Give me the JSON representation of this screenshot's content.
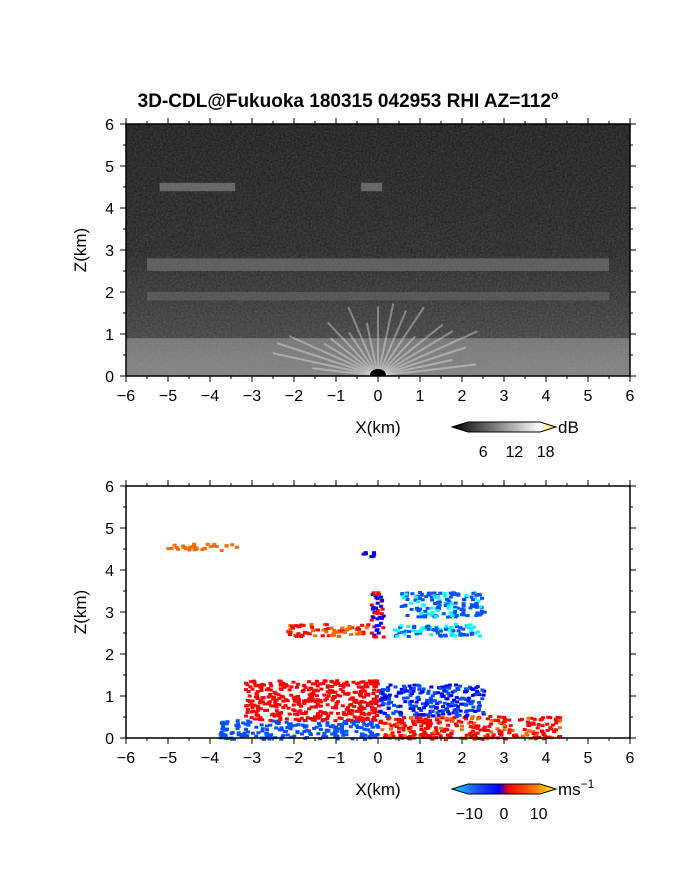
{
  "title": {
    "main": "3D-CDL@Fukuoka 180315 042953 RHI AZ=112",
    "degree_mark": "o"
  },
  "chart_data": [
    {
      "type": "heatmap",
      "panel": "top",
      "quantity": "reflectivity",
      "xlabel": "X(km)",
      "ylabel": "Z(km)",
      "xlim": [
        -6,
        6
      ],
      "ylim": [
        0,
        6
      ],
      "x_ticks": [
        "-6",
        "-5",
        "-4",
        "-3",
        "-2",
        "-1",
        "0",
        "1",
        "2",
        "3",
        "4",
        "5",
        "6"
      ],
      "y_ticks": [
        "0",
        "1",
        "2",
        "3",
        "4",
        "5",
        "6"
      ],
      "colorbar": {
        "unit": "dB",
        "range": [
          0,
          20
        ],
        "tick_labels": [
          "6",
          "12",
          "18"
        ],
        "tick_values": [
          6,
          12,
          18
        ],
        "colors": [
          "#000000",
          "#ffffff",
          "#ffd700"
        ]
      },
      "features": [
        {
          "z_range": [
            0,
            0.9
          ],
          "x_range": [
            -6,
            6
          ],
          "level_db": 12
        },
        {
          "z_range": [
            2.5,
            2.8
          ],
          "x_range": [
            -5.5,
            5.5
          ],
          "level_db": 9
        },
        {
          "z_range": [
            1.8,
            2.0
          ],
          "x_range": [
            -5.5,
            5.5
          ],
          "level_db": 7
        },
        {
          "z_range": [
            4.4,
            4.6
          ],
          "x_range": [
            -5.2,
            -3.4
          ],
          "level_db": 11
        },
        {
          "z_range": [
            4.4,
            4.6
          ],
          "x_range": [
            -0.4,
            0.1
          ],
          "level_db": 11
        }
      ]
    },
    {
      "type": "scatter",
      "panel": "bottom",
      "quantity": "Doppler velocity",
      "xlabel": "X(km)",
      "ylabel": "Z(km)",
      "xlim": [
        -6,
        6
      ],
      "ylim": [
        0,
        6
      ],
      "x_ticks": [
        "-6",
        "-5",
        "-4",
        "-3",
        "-2",
        "-1",
        "0",
        "1",
        "2",
        "3",
        "4",
        "5",
        "6"
      ],
      "y_ticks": [
        "0",
        "1",
        "2",
        "3",
        "4",
        "5",
        "6"
      ],
      "colorbar": {
        "unit": "ms",
        "unit_superscript": "−1",
        "range": [
          -15,
          15
        ],
        "tick_labels": [
          "−10",
          "0",
          "10"
        ],
        "tick_values": [
          -10,
          0,
          10
        ],
        "colors": [
          "#00ffff",
          "#0050ff",
          "#0000ff",
          "#ff0000",
          "#ff6a00",
          "#ffff00"
        ]
      },
      "clusters": [
        {
          "x_range": [
            -5.2,
            -3.4
          ],
          "z_range": [
            4.5,
            4.65
          ],
          "velocity": 8
        },
        {
          "x_range": [
            -0.45,
            0.0
          ],
          "z_range": [
            4.35,
            4.5
          ],
          "velocity": -2
        },
        {
          "x_range": [
            -2.2,
            -0.1
          ],
          "z_range": [
            2.45,
            2.75
          ],
          "velocity": 5
        },
        {
          "x_range": [
            -0.2,
            0.1
          ],
          "z_range": [
            2.4,
            3.5
          ],
          "velocity": 0
        },
        {
          "x_range": [
            0.35,
            2.4
          ],
          "z_range": [
            2.45,
            2.75
          ],
          "velocity": -10
        },
        {
          "x_range": [
            0.5,
            2.5
          ],
          "z_range": [
            2.9,
            3.5
          ],
          "velocity": -9
        },
        {
          "x_range": [
            -3.8,
            0.0
          ],
          "z_range": [
            0.0,
            0.45
          ],
          "velocity": -8
        },
        {
          "x_range": [
            -3.2,
            0.0
          ],
          "z_range": [
            0.45,
            1.4
          ],
          "velocity": 2
        },
        {
          "x_range": [
            0.0,
            4.3
          ],
          "z_range": [
            0.0,
            0.55
          ],
          "velocity": 4
        },
        {
          "x_range": [
            0.0,
            2.5
          ],
          "z_range": [
            0.55,
            1.3
          ],
          "velocity": -5
        }
      ]
    }
  ]
}
